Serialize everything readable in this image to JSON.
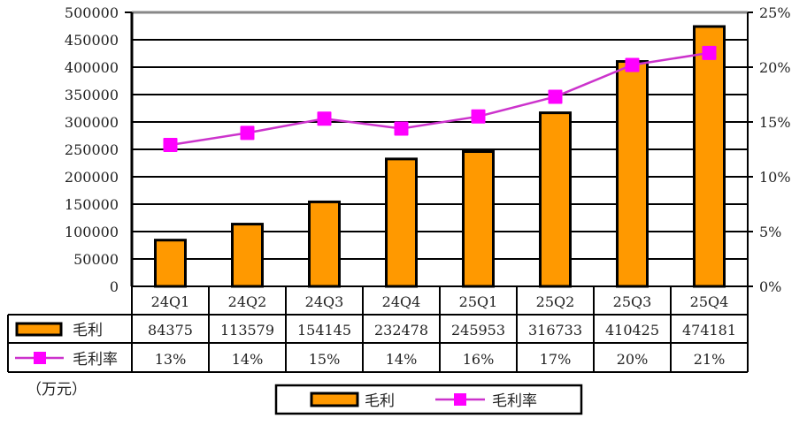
{
  "chart_data": {
    "type": "bar+line",
    "title": "",
    "unit_note": "（万元）",
    "categories": [
      "24Q1",
      "24Q2",
      "24Q3",
      "24Q4",
      "25Q1",
      "25Q2",
      "25Q3",
      "25Q4"
    ],
    "series": [
      {
        "name": "毛利",
        "type": "bar",
        "axis": "left",
        "color": "#FF9900",
        "values": [
          84375,
          113579,
          154145,
          232478,
          245953,
          316733,
          410425,
          474181
        ]
      },
      {
        "name": "毛利率",
        "type": "line",
        "axis": "right",
        "color": "#FF00FF",
        "line_color": "#CC33CC",
        "values": [
          13,
          14,
          15,
          14,
          16,
          17,
          20,
          21
        ],
        "labels": [
          "13%",
          "14%",
          "15%",
          "14%",
          "16%",
          "17%",
          "20%",
          "21%"
        ],
        "plotted_values": [
          12.9,
          14.0,
          15.3,
          14.4,
          15.5,
          17.3,
          20.2,
          21.3
        ]
      }
    ],
    "y_left": {
      "min": 0,
      "max": 500000,
      "step": 50000,
      "ticks": [
        "0",
        "50000",
        "100000",
        "150000",
        "200000",
        "250000",
        "300000",
        "350000",
        "400000",
        "450000",
        "500000"
      ]
    },
    "y_right": {
      "min": 0,
      "max": 25,
      "step": 5,
      "ticks": [
        "0%",
        "5%",
        "10%",
        "15%",
        "20%",
        "25%"
      ]
    },
    "grid": true,
    "data_table": true,
    "legend": {
      "position": "bottom",
      "items": [
        "毛利",
        "毛利率"
      ]
    }
  }
}
